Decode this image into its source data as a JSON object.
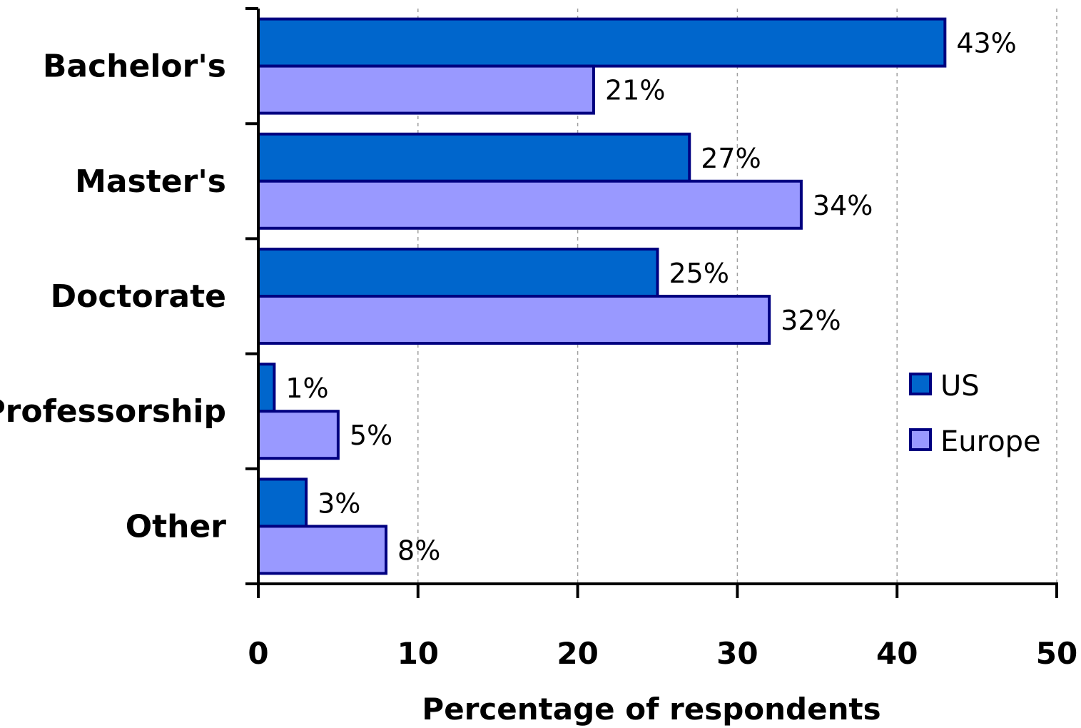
{
  "chart_data": {
    "type": "bar",
    "orientation": "horizontal",
    "categories": [
      "Bachelor's",
      "Master's",
      "Doctorate",
      "Professorship",
      "Other"
    ],
    "series": [
      {
        "name": "US",
        "values": [
          43,
          27,
          25,
          1,
          3
        ],
        "color": "#0066CC"
      },
      {
        "name": "Europe",
        "values": [
          21,
          34,
          32,
          5,
          8
        ],
        "color": "#9999FF"
      }
    ],
    "data_label_suffix": "%",
    "xlabel": "Percentage of respondents",
    "ylabel": "",
    "xlim": [
      0,
      50
    ],
    "x_ticks": [
      0,
      10,
      20,
      30,
      40,
      50
    ],
    "grid": {
      "x": true,
      "style": "dashed"
    },
    "legend": {
      "position": "right",
      "entries": [
        "US",
        "Europe"
      ]
    },
    "bar_edge_color": "#000080"
  }
}
